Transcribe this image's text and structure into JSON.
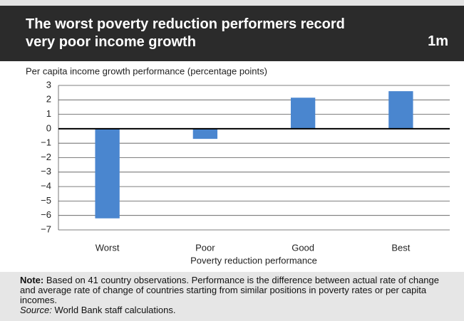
{
  "chart_data": {
    "type": "bar",
    "title": "The worst poverty reduction performers record very poor income growth",
    "figure_label": "1m",
    "y_label": "Per capita income growth performance (percentage points)",
    "x_label": "Poverty reduction performance",
    "categories": [
      "Worst",
      "Poor",
      "Good",
      "Best"
    ],
    "values": [
      -6.2,
      -0.7,
      2.15,
      2.6
    ],
    "color": "#4a86cf",
    "ylim": [
      -7,
      3
    ],
    "yticks": [
      {
        "value": -7,
        "label": "−7"
      },
      {
        "value": -6,
        "label": "−6"
      },
      {
        "value": -5,
        "label": "−5"
      },
      {
        "value": -4,
        "label": "−4"
      },
      {
        "value": -3,
        "label": "−3"
      },
      {
        "value": -2,
        "label": "−2"
      },
      {
        "value": -1,
        "label": "−1"
      },
      0,
      1,
      2,
      3
    ],
    "grid": true,
    "note": {
      "label": "Note:",
      "text": "Based on 41 country observations. Performance is the difference between actual rate of change and average rate of change of countries starting from similar positions in poverty rates or per capita incomes."
    },
    "source": {
      "label": "Source:",
      "text": "World Bank staff calculations."
    }
  }
}
